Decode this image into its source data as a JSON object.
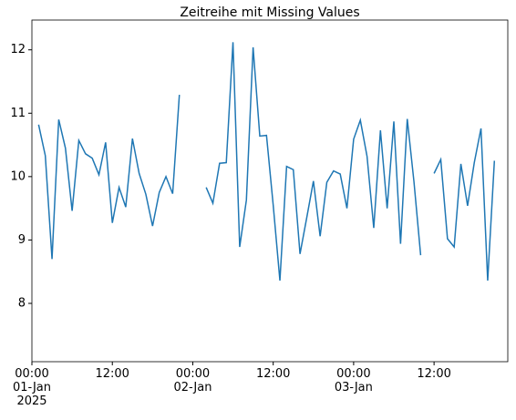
{
  "chart_data": {
    "type": "line",
    "title": "Zeitreihe mit Missing Values",
    "x": [
      "2025-01-01T01:00",
      "2025-01-01T02:00",
      "2025-01-01T03:00",
      "2025-01-01T04:00",
      "2025-01-01T05:00",
      "2025-01-01T06:00",
      "2025-01-01T07:00",
      "2025-01-01T08:00",
      "2025-01-01T09:00",
      "2025-01-01T10:00",
      "2025-01-01T11:00",
      "2025-01-01T12:00",
      "2025-01-01T13:00",
      "2025-01-01T14:00",
      "2025-01-01T15:00",
      "2025-01-01T16:00",
      "2025-01-01T17:00",
      "2025-01-01T18:00",
      "2025-01-01T19:00",
      "2025-01-01T20:00",
      "2025-01-01T21:00",
      "2025-01-01T22:00",
      "2025-01-01T23:00",
      "2025-01-02T00:00",
      "2025-01-02T01:00",
      "2025-01-02T02:00",
      "2025-01-02T03:00",
      "2025-01-02T04:00",
      "2025-01-02T05:00",
      "2025-01-02T06:00",
      "2025-01-02T07:00",
      "2025-01-02T08:00",
      "2025-01-02T09:00",
      "2025-01-02T10:00",
      "2025-01-02T11:00",
      "2025-01-02T12:00",
      "2025-01-02T13:00",
      "2025-01-02T14:00",
      "2025-01-02T15:00",
      "2025-01-02T16:00",
      "2025-01-02T17:00",
      "2025-01-02T18:00",
      "2025-01-02T19:00",
      "2025-01-02T20:00",
      "2025-01-02T21:00",
      "2025-01-02T22:00",
      "2025-01-02T23:00",
      "2025-01-03T00:00",
      "2025-01-03T01:00",
      "2025-01-03T02:00",
      "2025-01-03T03:00",
      "2025-01-03T04:00",
      "2025-01-03T05:00",
      "2025-01-03T06:00",
      "2025-01-03T07:00",
      "2025-01-03T08:00",
      "2025-01-03T09:00",
      "2025-01-03T10:00",
      "2025-01-03T11:00",
      "2025-01-03T12:00",
      "2025-01-03T13:00",
      "2025-01-03T14:00",
      "2025-01-03T15:00",
      "2025-01-03T16:00",
      "2025-01-03T17:00",
      "2025-01-03T18:00",
      "2025-01-03T19:00",
      "2025-01-03T20:00",
      "2025-01-03T21:00"
    ],
    "series": [
      {
        "color": "#1f77b4",
        "values": [
          10.82,
          10.33,
          8.7,
          10.9,
          10.45,
          9.46,
          10.57,
          10.36,
          10.29,
          10.03,
          10.54,
          9.27,
          9.83,
          9.52,
          10.6,
          10.05,
          9.72,
          9.22,
          9.75,
          10.0,
          9.73,
          11.29,
          null,
          null,
          null,
          9.83,
          9.58,
          10.21,
          10.22,
          12.12,
          8.89,
          9.63,
          12.04,
          10.64,
          10.65,
          9.55,
          8.36,
          10.16,
          10.11,
          8.78,
          9.35,
          9.93,
          9.06,
          9.91,
          10.09,
          10.04,
          9.5,
          10.59,
          10.89,
          10.32,
          9.19,
          10.73,
          9.5,
          10.87,
          8.94,
          10.91,
          9.92,
          8.76,
          null,
          10.05,
          10.27,
          9.02,
          8.89,
          10.2,
          9.54,
          10.22,
          10.76,
          8.36,
          10.25
        ]
      }
    ],
    "xlim": [
      "2025-01-01T00:00",
      "2025-01-03T23:00"
    ],
    "xticks": [
      {
        "value": "2025-01-01T00:00",
        "label": "00:00\n01-Jan\n2025"
      },
      {
        "value": "2025-01-01T12:00",
        "label": "12:00"
      },
      {
        "value": "2025-01-02T00:00",
        "label": "00:00\n02-Jan"
      },
      {
        "value": "2025-01-02T12:00",
        "label": "12:00"
      },
      {
        "value": "2025-01-03T00:00",
        "label": "00:00\n03-Jan"
      },
      {
        "value": "2025-01-03T12:00",
        "label": "12:00"
      }
    ],
    "ylim": [
      7.08,
      12.47
    ],
    "yticks": [
      8,
      9,
      10,
      11,
      12
    ]
  }
}
